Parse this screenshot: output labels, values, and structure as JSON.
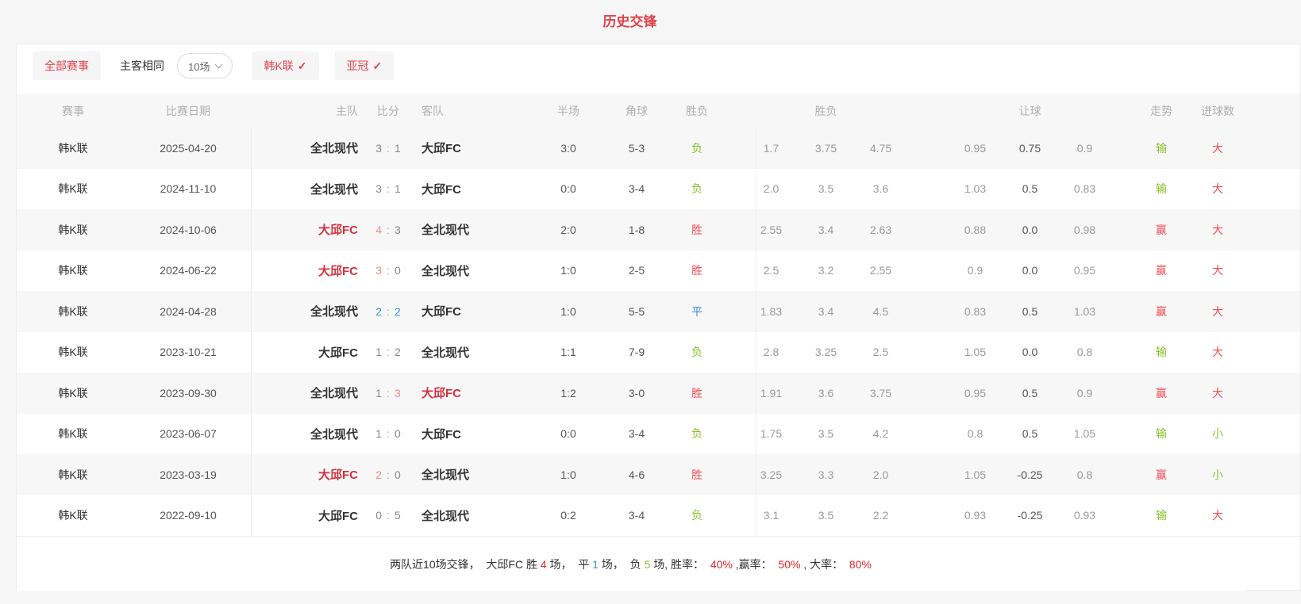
{
  "page": {
    "title": "历史交锋"
  },
  "filters": {
    "all_matches": "全部赛事",
    "same_home_away": "主客相同",
    "count_select": "10场",
    "league_k": "韩K联",
    "league_acl": "亚冠",
    "check_glyph": "✓"
  },
  "table": {
    "headers": {
      "league": "赛事",
      "date": "比赛日期",
      "home": "主队",
      "score": "比分",
      "away": "客队",
      "half": "半场",
      "corner": "角球",
      "result": "胜负",
      "odds_group": "胜负",
      "handicap_group": "让球",
      "trend": "走势",
      "goals": "进球数"
    },
    "rows": [
      {
        "league": "韩K联",
        "date": "2025-04-20",
        "home": "全北现代",
        "home_hl": false,
        "score_home": "3",
        "score_home_color": "gray",
        "score_away": "1",
        "score_away_color": "gray",
        "away": "大邱FC",
        "away_hl": false,
        "half": "3:0",
        "corner": "5-3",
        "result": "负",
        "result_color": "green",
        "odds": [
          "1.7",
          "3.75",
          "4.75"
        ],
        "handicap": [
          "0.95",
          "0.75",
          "0.9"
        ],
        "trend": "输",
        "trend_color": "green",
        "goals": "大",
        "goals_color": "red"
      },
      {
        "league": "韩K联",
        "date": "2024-11-10",
        "home": "全北现代",
        "home_hl": false,
        "score_home": "3",
        "score_home_color": "gray",
        "score_away": "1",
        "score_away_color": "gray",
        "away": "大邱FC",
        "away_hl": false,
        "half": "0:0",
        "corner": "3-4",
        "result": "负",
        "result_color": "green",
        "odds": [
          "2.0",
          "3.5",
          "3.6"
        ],
        "handicap": [
          "1.03",
          "0.5",
          "0.83"
        ],
        "trend": "输",
        "trend_color": "green",
        "goals": "大",
        "goals_color": "red"
      },
      {
        "league": "韩K联",
        "date": "2024-10-06",
        "home": "大邱FC",
        "home_hl": true,
        "score_home": "4",
        "score_home_color": "red",
        "score_away": "3",
        "score_away_color": "gray",
        "away": "全北现代",
        "away_hl": false,
        "half": "2:0",
        "corner": "1-8",
        "result": "胜",
        "result_color": "red",
        "odds": [
          "2.55",
          "3.4",
          "2.63"
        ],
        "handicap": [
          "0.88",
          "0.0",
          "0.98"
        ],
        "trend": "赢",
        "trend_color": "red",
        "goals": "大",
        "goals_color": "red"
      },
      {
        "league": "韩K联",
        "date": "2024-06-22",
        "home": "大邱FC",
        "home_hl": true,
        "score_home": "3",
        "score_home_color": "red",
        "score_away": "0",
        "score_away_color": "gray",
        "away": "全北现代",
        "away_hl": false,
        "half": "1:0",
        "corner": "2-5",
        "result": "胜",
        "result_color": "red",
        "odds": [
          "2.5",
          "3.2",
          "2.55"
        ],
        "handicap": [
          "0.9",
          "0.0",
          "0.95"
        ],
        "trend": "赢",
        "trend_color": "red",
        "goals": "大",
        "goals_color": "red"
      },
      {
        "league": "韩K联",
        "date": "2024-04-28",
        "home": "全北现代",
        "home_hl": false,
        "score_home": "2",
        "score_home_color": "blue",
        "score_away": "2",
        "score_away_color": "blue",
        "away": "大邱FC",
        "away_hl": false,
        "half": "1:0",
        "corner": "5-5",
        "result": "平",
        "result_color": "blue",
        "odds": [
          "1.83",
          "3.4",
          "4.5"
        ],
        "handicap": [
          "0.83",
          "0.5",
          "1.03"
        ],
        "trend": "赢",
        "trend_color": "red",
        "goals": "大",
        "goals_color": "red"
      },
      {
        "league": "韩K联",
        "date": "2023-10-21",
        "home": "大邱FC",
        "home_hl": false,
        "score_home": "1",
        "score_home_color": "gray",
        "score_away": "2",
        "score_away_color": "gray",
        "away": "全北现代",
        "away_hl": false,
        "half": "1:1",
        "corner": "7-9",
        "result": "负",
        "result_color": "green",
        "odds": [
          "2.8",
          "3.25",
          "2.5"
        ],
        "handicap": [
          "1.05",
          "0.0",
          "0.8"
        ],
        "trend": "输",
        "trend_color": "green",
        "goals": "大",
        "goals_color": "red"
      },
      {
        "league": "韩K联",
        "date": "2023-09-30",
        "home": "全北现代",
        "home_hl": false,
        "score_home": "1",
        "score_home_color": "gray",
        "score_away": "3",
        "score_away_color": "red",
        "away": "大邱FC",
        "away_hl": true,
        "half": "1:2",
        "corner": "3-0",
        "result": "胜",
        "result_color": "red",
        "odds": [
          "1.91",
          "3.6",
          "3.75"
        ],
        "handicap": [
          "0.95",
          "0.5",
          "0.9"
        ],
        "trend": "赢",
        "trend_color": "red",
        "goals": "大",
        "goals_color": "red"
      },
      {
        "league": "韩K联",
        "date": "2023-06-07",
        "home": "全北现代",
        "home_hl": false,
        "score_home": "1",
        "score_home_color": "gray",
        "score_away": "0",
        "score_away_color": "gray",
        "away": "大邱FC",
        "away_hl": false,
        "half": "0:0",
        "corner": "3-4",
        "result": "负",
        "result_color": "green",
        "odds": [
          "1.75",
          "3.5",
          "4.2"
        ],
        "handicap": [
          "0.8",
          "0.5",
          "1.05"
        ],
        "trend": "输",
        "trend_color": "green",
        "goals": "小",
        "goals_color": "green"
      },
      {
        "league": "韩K联",
        "date": "2023-03-19",
        "home": "大邱FC",
        "home_hl": true,
        "score_home": "2",
        "score_home_color": "red",
        "score_away": "0",
        "score_away_color": "gray",
        "away": "全北现代",
        "away_hl": false,
        "half": "1:0",
        "corner": "4-6",
        "result": "胜",
        "result_color": "red",
        "odds": [
          "3.25",
          "3.3",
          "2.0"
        ],
        "handicap": [
          "1.05",
          "-0.25",
          "0.8"
        ],
        "trend": "赢",
        "trend_color": "red",
        "goals": "小",
        "goals_color": "green"
      },
      {
        "league": "韩K联",
        "date": "2022-09-10",
        "home": "大邱FC",
        "home_hl": false,
        "score_home": "0",
        "score_home_color": "gray",
        "score_away": "5",
        "score_away_color": "gray",
        "away": "全北现代",
        "away_hl": false,
        "half": "0:2",
        "corner": "3-4",
        "result": "负",
        "result_color": "green",
        "odds": [
          "3.1",
          "3.5",
          "2.2"
        ],
        "handicap": [
          "0.93",
          "-0.25",
          "0.93"
        ],
        "trend": "输",
        "trend_color": "green",
        "goals": "大",
        "goals_color": "red"
      }
    ]
  },
  "summary": {
    "segments": [
      {
        "text": "两队近10场交锋，  大邱FC 胜 ",
        "color": "dark"
      },
      {
        "text": "4",
        "color": "red"
      },
      {
        "text": " 场，  平 ",
        "color": "dark"
      },
      {
        "text": "1",
        "color": "blue"
      },
      {
        "text": " 场，  负 ",
        "color": "dark"
      },
      {
        "text": "5",
        "color": "green"
      },
      {
        "text": " 场, 胜率：  ",
        "color": "dark"
      },
      {
        "text": "40%",
        "color": "red"
      },
      {
        "text": " ,赢率：  ",
        "color": "dark"
      },
      {
        "text": "50%",
        "color": "red"
      },
      {
        "text": " , 大率：  ",
        "color": "dark"
      },
      {
        "text": "80%",
        "color": "red"
      }
    ]
  },
  "colors": {
    "accent_red": "#e0434b",
    "team_red": "#d5303e",
    "score_red": "#ee8d8b",
    "green": "#85c229",
    "blue": "#3d8fe0",
    "gray_odds": "#999999",
    "page_bg": "#f6f6f7"
  }
}
